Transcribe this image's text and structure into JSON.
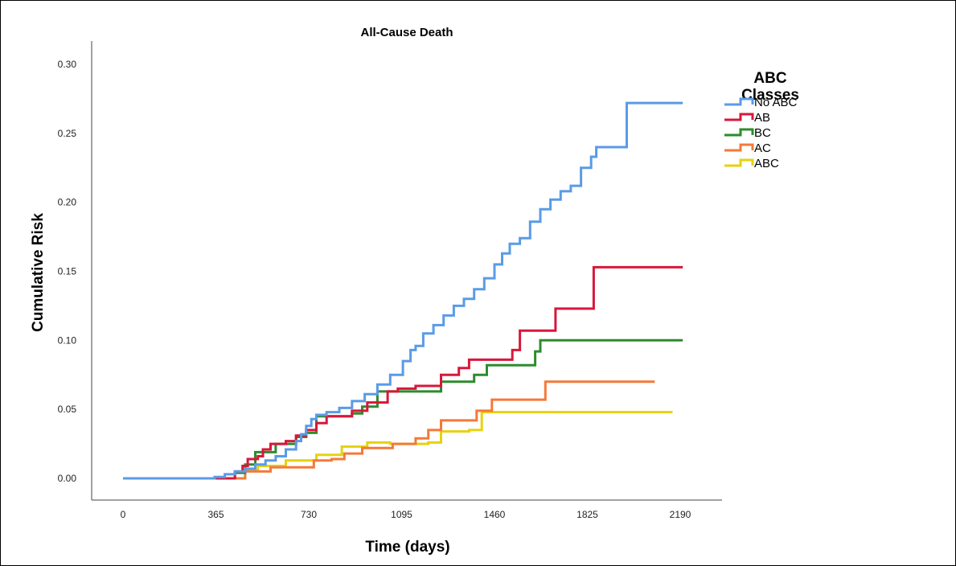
{
  "chart_data": {
    "type": "line",
    "step": true,
    "title": "All-Cause Death",
    "xlabel": "Time (days)",
    "ylabel": "Cumulative Risk",
    "xlim": [
      0,
      2190
    ],
    "ylim": [
      0.0,
      0.3
    ],
    "x_ticks": [
      "0",
      "365",
      "730",
      "1095",
      "1460",
      "1825",
      "2190"
    ],
    "y_ticks": [
      "0.00",
      "0.05",
      "0.10",
      "0.15",
      "0.20",
      "0.25",
      "0.30"
    ],
    "grid": false,
    "legend": {
      "title_lines": [
        "ABC",
        "Classes"
      ],
      "position": "top-right-outside"
    },
    "series": [
      {
        "name": "No ABC",
        "color": "#5a9be6",
        "points": [
          [
            0,
            0
          ],
          [
            330,
            0
          ],
          [
            360,
            0.001
          ],
          [
            400,
            0.003
          ],
          [
            440,
            0.005
          ],
          [
            480,
            0.007
          ],
          [
            520,
            0.01
          ],
          [
            560,
            0.013
          ],
          [
            600,
            0.016
          ],
          [
            640,
            0.021
          ],
          [
            680,
            0.027
          ],
          [
            700,
            0.032
          ],
          [
            720,
            0.038
          ],
          [
            740,
            0.043
          ],
          [
            760,
            0.046
          ],
          [
            800,
            0.048
          ],
          [
            850,
            0.051
          ],
          [
            900,
            0.056
          ],
          [
            950,
            0.061
          ],
          [
            1000,
            0.068
          ],
          [
            1050,
            0.075
          ],
          [
            1100,
            0.085
          ],
          [
            1130,
            0.093
          ],
          [
            1150,
            0.096
          ],
          [
            1180,
            0.105
          ],
          [
            1220,
            0.111
          ],
          [
            1260,
            0.118
          ],
          [
            1300,
            0.125
          ],
          [
            1340,
            0.13
          ],
          [
            1380,
            0.137
          ],
          [
            1420,
            0.145
          ],
          [
            1460,
            0.155
          ],
          [
            1490,
            0.163
          ],
          [
            1520,
            0.17
          ],
          [
            1560,
            0.174
          ],
          [
            1600,
            0.186
          ],
          [
            1640,
            0.195
          ],
          [
            1680,
            0.202
          ],
          [
            1720,
            0.208
          ],
          [
            1760,
            0.212
          ],
          [
            1800,
            0.225
          ],
          [
            1840,
            0.233
          ],
          [
            1860,
            0.24
          ],
          [
            1970,
            0.24
          ],
          [
            1980,
            0.272
          ],
          [
            2200,
            0.272
          ]
        ]
      },
      {
        "name": "AB",
        "color": "#d8173a",
        "points": [
          [
            0,
            0
          ],
          [
            430,
            0
          ],
          [
            440,
            0.005
          ],
          [
            470,
            0.009
          ],
          [
            490,
            0.014
          ],
          [
            530,
            0.016
          ],
          [
            550,
            0.021
          ],
          [
            580,
            0.025
          ],
          [
            640,
            0.027
          ],
          [
            680,
            0.031
          ],
          [
            720,
            0.035
          ],
          [
            760,
            0.04
          ],
          [
            800,
            0.045
          ],
          [
            900,
            0.049
          ],
          [
            960,
            0.055
          ],
          [
            1040,
            0.063
          ],
          [
            1080,
            0.065
          ],
          [
            1150,
            0.067
          ],
          [
            1250,
            0.075
          ],
          [
            1320,
            0.08
          ],
          [
            1360,
            0.086
          ],
          [
            1530,
            0.093
          ],
          [
            1560,
            0.107
          ],
          [
            1700,
            0.123
          ],
          [
            1850,
            0.153
          ],
          [
            2200,
            0.153
          ]
        ]
      },
      {
        "name": "BC",
        "color": "#2e8b2e",
        "points": [
          [
            0,
            0
          ],
          [
            420,
            0
          ],
          [
            440,
            0.004
          ],
          [
            480,
            0.01
          ],
          [
            520,
            0.019
          ],
          [
            600,
            0.025
          ],
          [
            680,
            0.03
          ],
          [
            720,
            0.033
          ],
          [
            760,
            0.045
          ],
          [
            900,
            0.047
          ],
          [
            940,
            0.052
          ],
          [
            1000,
            0.063
          ],
          [
            1250,
            0.07
          ],
          [
            1380,
            0.075
          ],
          [
            1430,
            0.082
          ],
          [
            1620,
            0.092
          ],
          [
            1640,
            0.1
          ],
          [
            2200,
            0.1
          ]
        ]
      },
      {
        "name": "AC",
        "color": "#f4793a",
        "points": [
          [
            0,
            0
          ],
          [
            470,
            0
          ],
          [
            480,
            0.005
          ],
          [
            580,
            0.008
          ],
          [
            750,
            0.013
          ],
          [
            820,
            0.014
          ],
          [
            870,
            0.018
          ],
          [
            940,
            0.022
          ],
          [
            1060,
            0.025
          ],
          [
            1150,
            0.029
          ],
          [
            1200,
            0.035
          ],
          [
            1250,
            0.042
          ],
          [
            1390,
            0.049
          ],
          [
            1450,
            0.057
          ],
          [
            1660,
            0.07
          ],
          [
            2090,
            0.07
          ]
        ]
      },
      {
        "name": "ABC",
        "color": "#e6d20e",
        "points": [
          [
            0,
            0
          ],
          [
            450,
            0
          ],
          [
            480,
            0.006
          ],
          [
            530,
            0.009
          ],
          [
            640,
            0.013
          ],
          [
            760,
            0.017
          ],
          [
            860,
            0.023
          ],
          [
            960,
            0.026
          ],
          [
            1050,
            0.025
          ],
          [
            1200,
            0.026
          ],
          [
            1250,
            0.034
          ],
          [
            1360,
            0.035
          ],
          [
            1410,
            0.048
          ],
          [
            2160,
            0.048
          ]
        ]
      }
    ]
  }
}
